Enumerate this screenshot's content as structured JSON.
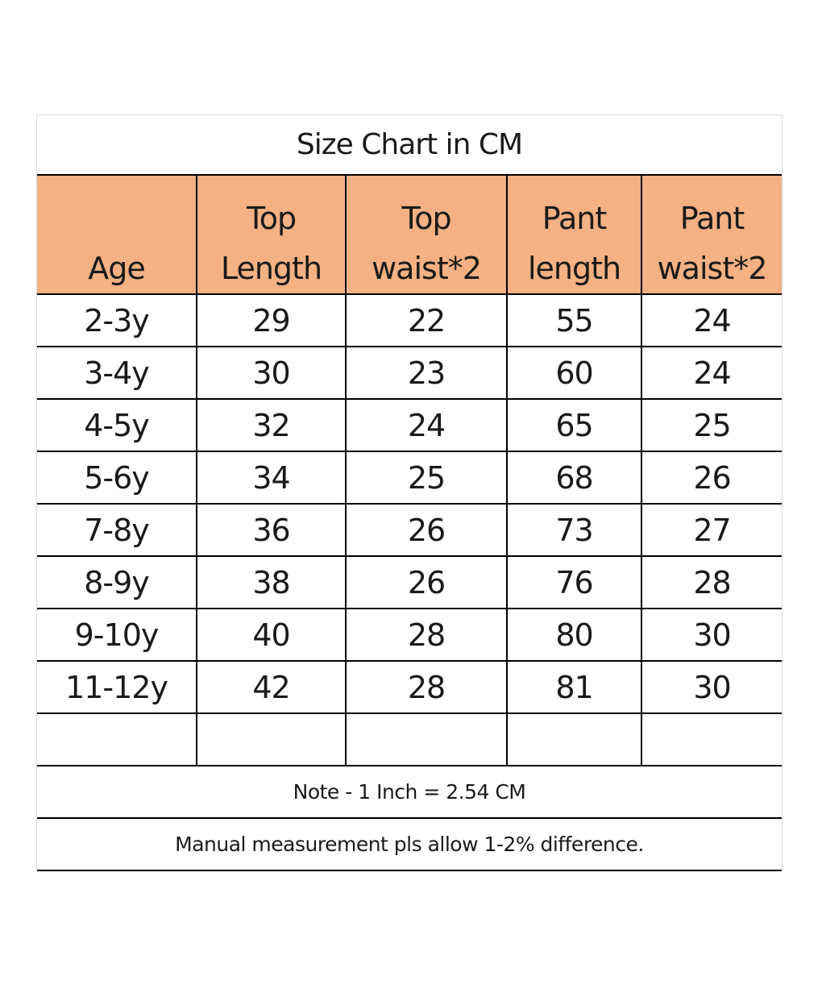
{
  "title": "Size Chart in CM",
  "headers": [
    [
      "",
      "Age"
    ],
    [
      "Top",
      "Length"
    ],
    [
      "Top",
      "waist*2"
    ],
    [
      "Pant",
      "length"
    ],
    [
      "Pant",
      "waist*2"
    ]
  ],
  "rows": [
    [
      "2-3y",
      "29",
      "22",
      "55",
      "24"
    ],
    [
      "3-4y",
      "30",
      "23",
      "60",
      "24"
    ],
    [
      "4-5y",
      "32",
      "24",
      "65",
      "25"
    ],
    [
      "5-6y",
      "34",
      "25",
      "68",
      "26"
    ],
    [
      "7-8y",
      "36",
      "26",
      "73",
      "27"
    ],
    [
      "8-9y",
      "38",
      "26",
      "76",
      "28"
    ],
    [
      "9-10y",
      "40",
      "28",
      "80",
      "30"
    ],
    [
      "11-12y",
      "42",
      "28",
      "81",
      "30"
    ],
    [
      "",
      "",
      "",
      "",
      ""
    ]
  ],
  "notes": [
    "Note - 1 Inch = 2.54 CM",
    "Manual measurement pls allow 1-2% difference."
  ],
  "colors": {
    "header_fill": "#f4b183",
    "grid_line": "#000000",
    "outer_border": "#d9d9d9"
  }
}
